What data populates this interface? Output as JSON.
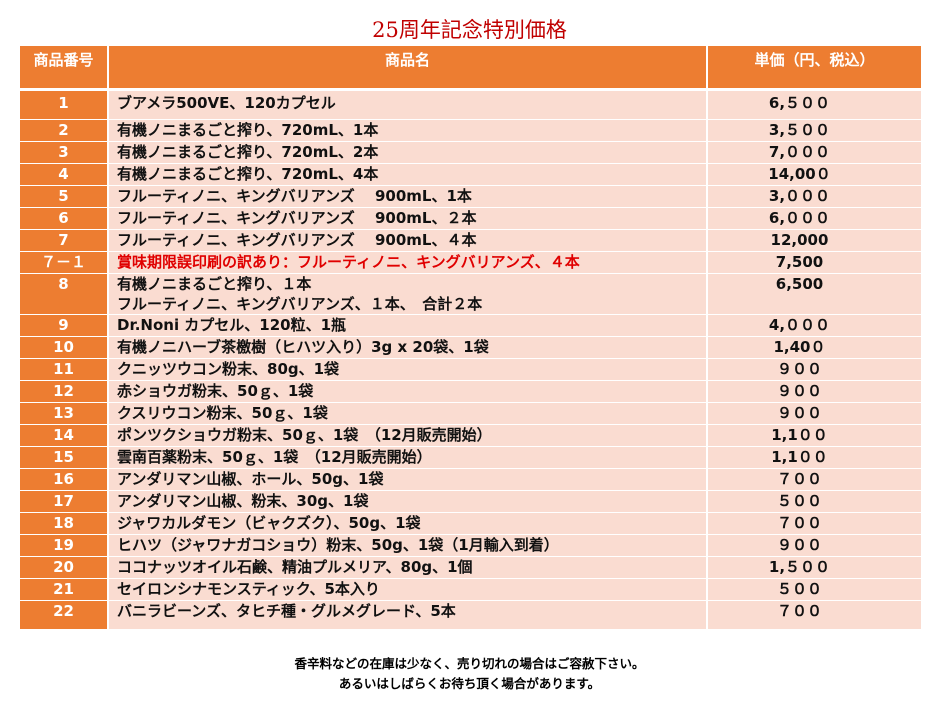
{
  "header": {
    "title": "25周年記念特別価格"
  },
  "table": {
    "columns": [
      "商品番号",
      "商品名",
      "単価（円、税込）"
    ],
    "rows": [
      [
        "1",
        "ブアメラ500VE、120カプセル",
        "6,５００"
      ],
      [
        "2",
        "有機ノニまるごと搾り、720mL、1本",
        "3,５００"
      ],
      [
        "3",
        "有機ノニまるごと搾り、720mL、2本",
        "7,０００"
      ],
      [
        "4",
        "有機ノニまるごと搾り、720mL、4本",
        "14,00０"
      ],
      [
        "5",
        "フルーティノニ、キングバリアンズ　 900mL、1本",
        "3,０００"
      ],
      [
        "6",
        "フルーティノニ、キングバリアンズ　 900mL、２本",
        "6,０００"
      ],
      [
        "7",
        "フルーティノニ、キングバリアンズ　 900mL、４本",
        "12,000"
      ],
      [
        "７－１",
        "賞味期限誤印刷の訳あり：フルーティノニ、キングバリアンズ、４本",
        "7,500"
      ],
      [
        "8",
        [
          "有機ノニまるごと搾り、１本",
          "フルーティノニ、キングバリアンズ、１本、　合計２本"
        ],
        "6,500"
      ],
      [
        "9",
        "Dr.Noni カプセル、120粒、1瓶",
        "4,０００"
      ],
      [
        "10",
        "有機ノニハーブ茶檄樹（ヒハツ入り）3g x 20袋、1袋",
        "1,40０"
      ],
      [
        "11",
        "クニッツウコン粉末、80g、1袋",
        "９００"
      ],
      [
        "12",
        "赤ショウガ粉末、50ｇ、1袋",
        "９００"
      ],
      [
        "13",
        "クスリウコン粉末、50ｇ、1袋",
        "９００"
      ],
      [
        "14",
        "ポンツクショウガ粉末、50ｇ、1袋　（12月販売開始）",
        "1,1００"
      ],
      [
        "15",
        "雲南百薬粉末、50ｇ、1袋　（12月販売開始）",
        "1,1００"
      ],
      [
        "16",
        "アンダリマン山椒、ホール、50g、1袋",
        "７００"
      ],
      [
        "17",
        "アンダリマン山椒、粉末、30g、1袋",
        "５００"
      ],
      [
        "18",
        "ジャワカルダモン（ビャクズク）、50g、1袋",
        "７００"
      ],
      [
        "19",
        "ヒハツ（ジャワナガコショウ）粉末、50g、1袋（1月輸入到着）",
        "９００"
      ],
      [
        "20",
        "ココナッツオイル石鹸、精油プルメリア、80g、1個",
        "1,５００"
      ],
      [
        "21",
        "セイロンシナモンスティック、5本入り",
        "５００"
      ],
      [
        "22",
        "バニラビーンズ、タヒチ種・グルメグレード、5本",
        "７００"
      ]
    ]
  },
  "footer": {
    "notes": [
      "香辛料などの在庫は少なく、売り切れの場合はご容赦下さい。",
      "あるいはしばらくお待ち頂く場合があります。"
    ]
  }
}
